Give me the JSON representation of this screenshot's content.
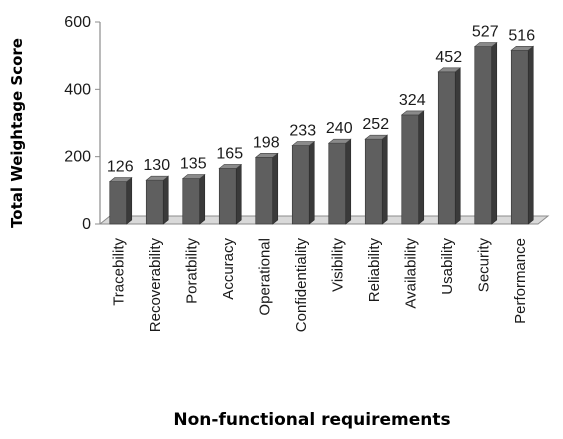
{
  "chart_data": {
    "type": "bar",
    "style": "3d-column",
    "categories": [
      "Tracebility",
      "Recoverability",
      "Poratbility",
      "Accuracy",
      "Operational",
      "Confidentiality",
      "Visibility",
      "Reliability",
      "Availability",
      "Usability",
      "Security",
      "Performance"
    ],
    "values": [
      126,
      130,
      135,
      165,
      198,
      233,
      240,
      252,
      324,
      452,
      527,
      516
    ],
    "data_labels": [
      "126",
      "130",
      "135",
      "165",
      "198",
      "233",
      "240",
      "252",
      "324",
      "452",
      "527",
      "516"
    ],
    "xlabel": "Non-functional requirements",
    "ylabel": "Total Weightage Score",
    "ylim": [
      0,
      600
    ],
    "yticks": [
      0,
      200,
      400,
      600
    ],
    "ytick_labels": [
      "0",
      "200",
      "400",
      "600"
    ],
    "grid": false,
    "legend": "none",
    "colors": {
      "bar_front": "#5f5f5f",
      "bar_side": "#3a3a3a",
      "bar_top": "#8a8a8a",
      "floor": "#d9d9d9",
      "axis": "#8c8c8c"
    }
  }
}
